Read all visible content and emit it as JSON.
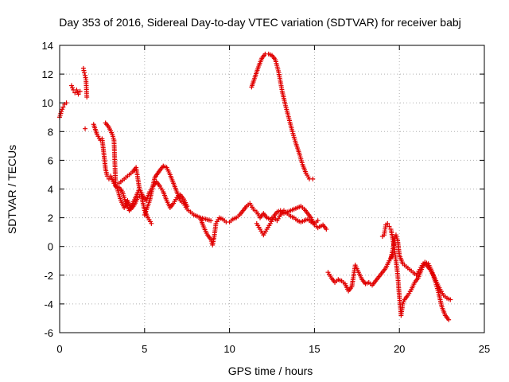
{
  "chart_data": {
    "type": "scatter",
    "title": "Day 353 of 2016, Sidereal Day-to-day VTEC variation (SDTVAR) for receiver babj",
    "xlabel": "GPS time / hours",
    "ylabel": "SDTVAR / TECUs",
    "xlim": [
      0,
      25
    ],
    "ylim": [
      -6,
      14
    ],
    "xticks": [
      0,
      5,
      10,
      15,
      20,
      25
    ],
    "yticks": [
      -6,
      -4,
      -2,
      0,
      2,
      4,
      6,
      8,
      10,
      12,
      14
    ],
    "grid": true,
    "marker": "plus",
    "color": "#e00000",
    "series": [
      {
        "name": "track-early",
        "x": [
          0.0,
          0.1,
          0.2,
          0.3,
          0.4
        ],
        "y": [
          9.0,
          9.4,
          9.7,
          9.9,
          10.0
        ]
      },
      {
        "name": "track-early-2",
        "x": [
          0.7,
          0.8,
          0.9,
          1.0,
          1.1,
          1.2
        ],
        "y": [
          11.2,
          10.9,
          10.7,
          10.9,
          10.6,
          10.8
        ]
      },
      {
        "name": "track-early-3",
        "x": [
          1.4,
          1.45,
          1.5,
          1.55,
          1.6
        ],
        "y": [
          12.4,
          12.1,
          11.9,
          11.6,
          10.4
        ]
      },
      {
        "name": "isolated",
        "x": [
          1.5
        ],
        "y": [
          8.2
        ]
      },
      {
        "name": "track-a",
        "x": [
          2.0,
          2.2,
          2.4,
          2.5,
          2.6,
          2.7,
          2.8,
          2.9,
          3.0,
          3.2,
          3.4,
          3.6,
          3.8,
          4.0,
          4.2,
          4.4,
          4.6,
          4.8,
          5.0,
          5.2,
          5.4
        ],
        "y": [
          8.5,
          7.8,
          7.4,
          7.5,
          6.5,
          5.4,
          4.9,
          4.7,
          4.9,
          4.4,
          4.0,
          3.2,
          2.7,
          3.2,
          2.6,
          2.9,
          3.4,
          3.6,
          2.5,
          2.0,
          1.6
        ]
      },
      {
        "name": "track-b",
        "x": [
          2.7,
          2.9,
          3.1,
          3.2,
          3.3,
          3.5,
          3.7,
          3.9,
          4.1,
          4.3,
          4.5,
          4.7
        ],
        "y": [
          8.6,
          8.3,
          7.8,
          7.4,
          4.2,
          4.1,
          3.8,
          3.0,
          2.5,
          3.0,
          3.5,
          4.0
        ]
      },
      {
        "name": "track-c",
        "x": [
          3.5,
          3.7,
          3.9,
          4.1,
          4.3,
          4.5,
          4.7,
          4.9,
          5.1,
          5.3,
          5.5,
          5.7,
          5.9,
          6.1,
          6.3,
          6.5,
          6.7,
          6.9,
          7.1,
          7.3,
          7.5
        ],
        "y": [
          4.4,
          4.6,
          4.8,
          5.0,
          5.2,
          5.5,
          4.0,
          3.5,
          3.2,
          3.8,
          4.2,
          4.5,
          4.2,
          3.8,
          3.2,
          2.7,
          3.0,
          3.4,
          3.6,
          3.3,
          2.8
        ]
      },
      {
        "name": "track-d",
        "x": [
          5.0,
          5.3,
          5.6,
          5.9,
          6.1,
          6.3,
          6.5,
          6.7,
          6.9,
          7.1,
          7.3,
          7.5,
          7.7,
          7.9,
          8.1,
          8.3,
          8.6,
          8.9
        ],
        "y": [
          2.2,
          3.2,
          4.8,
          5.3,
          5.6,
          5.5,
          5.0,
          4.4,
          3.8,
          3.2,
          3.0,
          2.6,
          2.4,
          2.2,
          2.1,
          2.0,
          1.9,
          1.8
        ]
      },
      {
        "name": "track-e",
        "x": [
          8.3,
          8.5,
          8.7,
          8.9,
          9.0,
          9.1,
          9.2,
          9.4,
          9.6,
          9.8,
          10.0,
          10.2,
          10.4,
          10.6,
          10.8,
          11.0,
          11.2,
          11.4,
          11.6,
          11.8,
          12.0,
          12.2,
          12.4,
          12.6,
          12.8,
          13.0,
          13.2,
          13.4,
          13.6,
          13.8,
          14.0,
          14.2,
          14.4,
          14.6,
          14.8,
          15.0,
          15.2,
          15.5,
          15.7
        ],
        "y": [
          1.9,
          1.3,
          0.8,
          0.5,
          0.1,
          0.7,
          1.6,
          2.0,
          1.9,
          1.7,
          1.7,
          1.9,
          2.0,
          2.2,
          2.5,
          2.8,
          3.0,
          2.6,
          2.4,
          2.0,
          2.3,
          2.0,
          1.9,
          2.1,
          2.4,
          2.5,
          2.3,
          2.4,
          2.5,
          2.6,
          2.7,
          2.8,
          2.6,
          2.3,
          2.0,
          1.5,
          1.3,
          1.5,
          1.2
        ]
      },
      {
        "name": "track-f",
        "x": [
          11.3,
          11.5,
          11.7,
          11.9,
          12.1,
          12.3,
          12.5,
          12.7,
          12.9,
          13.1,
          13.3,
          13.5,
          13.7,
          13.9,
          14.1,
          14.3,
          14.5,
          14.7,
          14.9
        ],
        "y": [
          11.1,
          11.8,
          12.5,
          13.1,
          13.4,
          13.4,
          13.3,
          13.0,
          12.1,
          10.8,
          9.8,
          8.9,
          8.0,
          7.2,
          6.5,
          5.7,
          5.1,
          4.7,
          4.7
        ]
      },
      {
        "name": "track-g",
        "x": [
          11.6,
          11.8,
          12.0,
          12.2,
          12.4,
          12.6,
          12.8,
          13.0,
          13.2,
          13.4,
          13.6,
          13.8,
          14.0,
          14.2,
          14.4,
          14.6,
          14.8,
          15.0,
          15.2
        ],
        "y": [
          1.6,
          1.2,
          0.8,
          1.2,
          1.6,
          2.0,
          1.8,
          2.2,
          2.5,
          2.3,
          2.1,
          2.0,
          1.8,
          1.7,
          1.8,
          1.9,
          1.7,
          1.6,
          1.8
        ]
      },
      {
        "name": "track-h",
        "x": [
          15.8,
          16.0,
          16.2,
          16.4,
          16.6,
          16.8,
          17.0,
          17.2,
          17.4,
          17.6,
          17.8,
          18.0,
          18.2,
          18.4,
          18.6,
          18.8,
          19.0,
          19.2,
          19.4,
          19.6
        ],
        "y": [
          -1.8,
          -2.2,
          -2.5,
          -2.3,
          -2.4,
          -2.6,
          -3.1,
          -2.8,
          -1.3,
          -1.8,
          -2.3,
          -2.6,
          -2.5,
          -2.7,
          -2.4,
          -2.1,
          -1.8,
          -1.5,
          -1.0,
          -0.6
        ]
      },
      {
        "name": "track-i",
        "x": [
          19.0,
          19.1,
          19.2,
          19.3,
          19.4,
          19.5,
          19.6,
          19.7,
          19.8,
          19.9,
          20.0,
          20.1,
          20.2,
          20.3,
          20.5,
          20.7,
          20.9,
          21.1,
          21.3,
          21.5,
          21.7,
          21.9,
          22.1,
          22.3,
          22.5,
          22.7,
          22.9
        ],
        "y": [
          0.7,
          0.8,
          1.5,
          1.6,
          1.4,
          1.2,
          0.6,
          -0.2,
          -1.0,
          -2.0,
          -3.5,
          -4.8,
          -4.0,
          -3.7,
          -3.4,
          -3.0,
          -2.5,
          -2.2,
          -1.6,
          -1.1,
          -1.2,
          -1.7,
          -2.4,
          -3.2,
          -4.2,
          -4.8,
          -5.1
        ]
      },
      {
        "name": "track-j",
        "x": [
          19.5,
          19.6,
          19.7,
          19.8,
          19.9,
          20.0,
          20.2,
          20.4,
          20.6,
          20.8,
          21.0,
          21.2,
          21.4,
          21.6,
          21.8,
          22.0,
          22.2,
          22.4,
          22.6,
          22.8,
          23.0
        ],
        "y": [
          -0.8,
          -0.3,
          0.4,
          0.8,
          0.4,
          -0.6,
          -1.2,
          -1.4,
          -1.6,
          -1.8,
          -2.0,
          -1.6,
          -1.2,
          -1.3,
          -1.6,
          -2.0,
          -2.5,
          -3.0,
          -3.4,
          -3.6,
          -3.7
        ]
      }
    ]
  }
}
